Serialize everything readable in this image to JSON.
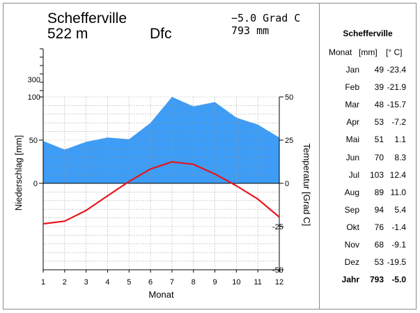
{
  "header": {
    "station": "Schefferville",
    "elevation": "522 m",
    "climate_class": "Dfc",
    "mean_temp": "−5.0 Grad C",
    "annual_precip": "793 mm"
  },
  "table": {
    "title": "Schefferville",
    "col_month": "Monat",
    "col_precip": "[mm]",
    "col_temp": "[° C]",
    "rows": [
      {
        "m": "Jan",
        "p": "49",
        "t": "-23.4"
      },
      {
        "m": "Feb",
        "p": "39",
        "t": "-21.9"
      },
      {
        "m": "Mar",
        "p": "48",
        "t": "-15.7"
      },
      {
        "m": "Apr",
        "p": "53",
        "t": "-7.2"
      },
      {
        "m": "Mai",
        "p": "51",
        "t": "1.1"
      },
      {
        "m": "Jun",
        "p": "70",
        "t": "8.3"
      },
      {
        "m": "Jul",
        "p": "103",
        "t": "12.4"
      },
      {
        "m": "Aug",
        "p": "89",
        "t": "11.0"
      },
      {
        "m": "Sep",
        "p": "94",
        "t": "5.4"
      },
      {
        "m": "Okt",
        "p": "76",
        "t": "-1.4"
      },
      {
        "m": "Nov",
        "p": "68",
        "t": "-9.1"
      },
      {
        "m": "Dez",
        "p": "53",
        "t": "-19.5"
      }
    ],
    "total": {
      "m": "Jahr",
      "p": "793",
      "t": "-5.0"
    }
  },
  "chart_data": {
    "type": "area",
    "xlabel": "Monat",
    "ylabel_left": "Niederschlag [mm]",
    "ylabel_right": "Temperatur [Grad C]",
    "x": [
      "1",
      "2",
      "3",
      "4",
      "5",
      "6",
      "7",
      "8",
      "9",
      "10",
      "11",
      "12"
    ],
    "left_ticks": [
      "0",
      "50",
      "100",
      "300"
    ],
    "right_ticks": [
      "-50",
      "-25",
      "0",
      "25",
      "50"
    ],
    "series": [
      {
        "kind": "area",
        "color": "#3d9cf5",
        "values": [
          49,
          39,
          48,
          53,
          51,
          70,
          103,
          89,
          94,
          76,
          68,
          53
        ]
      },
      {
        "kind": "line",
        "color": "#e8141c",
        "values": [
          -23.4,
          -21.9,
          -15.7,
          -7.2,
          1.1,
          8.3,
          12.4,
          11.0,
          5.4,
          -1.4,
          -9.1,
          -19.5
        ]
      }
    ],
    "temp_range": [
      -50,
      50
    ],
    "precip_range": [
      0,
      100
    ],
    "grid": true
  }
}
